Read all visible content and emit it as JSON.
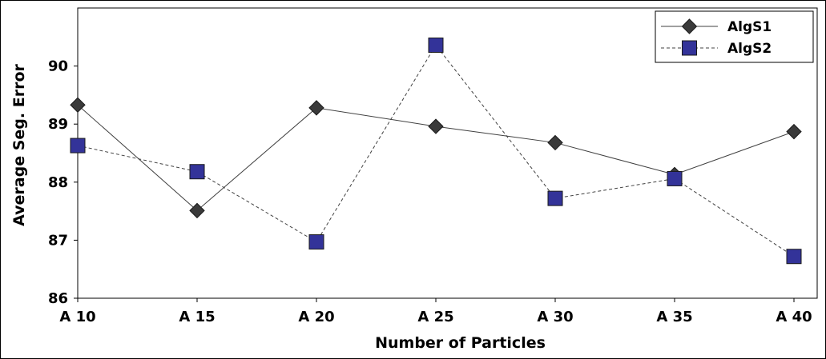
{
  "chart_data": {
    "type": "line",
    "title": "",
    "xlabel": "Number of Particles",
    "ylabel": "Average Seg. Error",
    "categories": [
      "A10",
      "A15",
      "A20",
      "A25",
      "A30",
      "A35",
      "A40"
    ],
    "ylim": [
      86,
      91
    ],
    "yticks": [
      86,
      87,
      88,
      89,
      90
    ],
    "ytick_labels": [
      "86",
      "87",
      "88",
      "89",
      "90"
    ],
    "xtick_labels": [
      "A 10",
      "A 15",
      "A 20",
      "A 25",
      "A 30",
      "A 35",
      "A 40"
    ],
    "grid": false,
    "legend_position": "top-right",
    "series": [
      {
        "name": "AlgS1",
        "values": [
          89.33,
          87.51,
          89.28,
          88.96,
          88.68,
          88.13,
          88.87
        ],
        "marker": "diamond",
        "line_style": "solid",
        "color": "#3a3a3a",
        "line_color": "#404040"
      },
      {
        "name": "AlgS2",
        "values": [
          88.63,
          88.18,
          86.97,
          90.36,
          87.72,
          88.06,
          86.72
        ],
        "marker": "square",
        "line_style": "dashed",
        "color": "#333399",
        "line_color": "#404040"
      }
    ]
  }
}
